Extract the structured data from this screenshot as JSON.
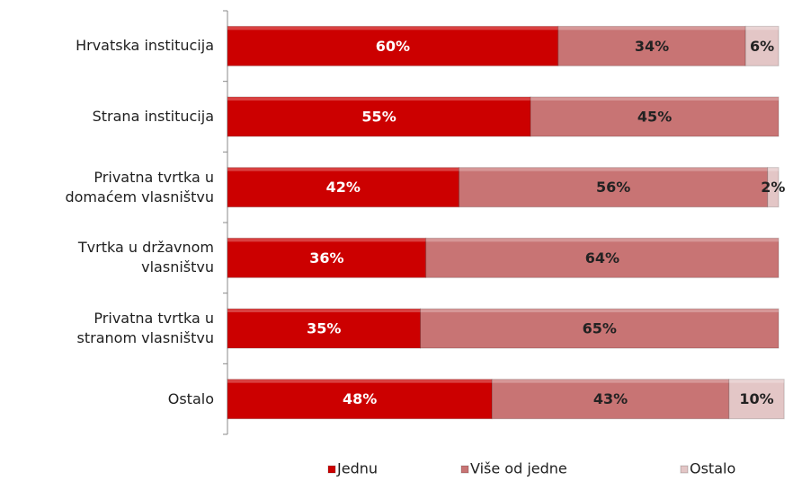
{
  "chart_data": {
    "type": "stacked-bar-horizontal",
    "categories": [
      "Hrvatska institucija",
      "Strana institucija",
      "Privatna tvrtka u\ndomaćem vlasništvu",
      "Tvrtka u državnom\nvlasništvu",
      "Privatna tvrtka u\nstranom vlasništvu",
      "Ostalo"
    ],
    "series": [
      {
        "name": "Jednu",
        "color": "#cc0000",
        "values": [
          60,
          55,
          42,
          36,
          35,
          48
        ],
        "value_labels": [
          "60%",
          "55%",
          "42%",
          "36%",
          "35%",
          "48%"
        ]
      },
      {
        "name": "Više od jedne",
        "color": "#c87474",
        "values": [
          34,
          45,
          56,
          64,
          65,
          43
        ],
        "value_labels": [
          "34%",
          "45%",
          "56%",
          "64%",
          "65%",
          "43%"
        ]
      },
      {
        "name": "Ostalo",
        "color": "#e3c6c6",
        "values": [
          6,
          null,
          2,
          null,
          null,
          10
        ],
        "value_labels": [
          "6%",
          null,
          "2%",
          null,
          null,
          "10%"
        ]
      }
    ],
    "xlim": [
      0,
      100
    ],
    "legend": "bottom"
  }
}
